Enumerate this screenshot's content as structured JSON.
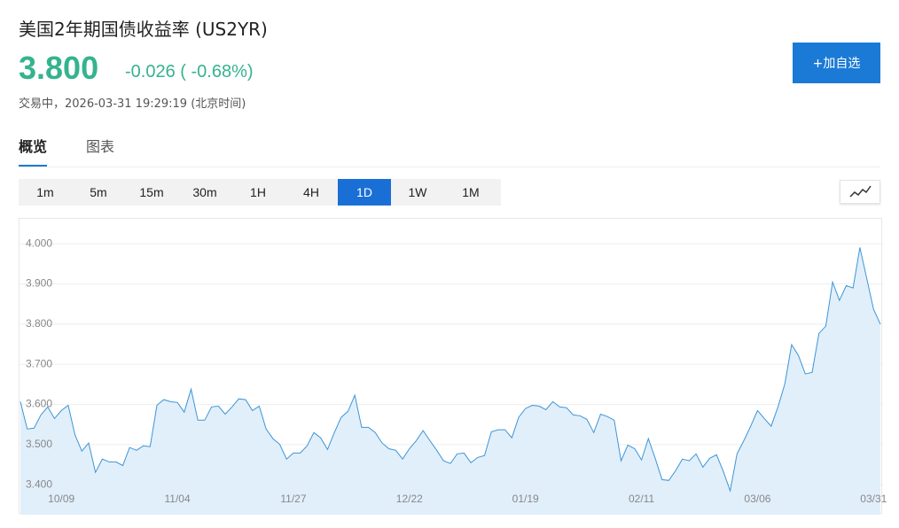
{
  "header": {
    "title": "美国2年期国债收益率 (US2YR)",
    "price": "3.800",
    "change": "-0.026",
    "change_percent": "( -0.68%)",
    "status": "交易中，2026-03-31 19:29:19 (北京时间)",
    "button": "+加自选"
  },
  "tabs": {
    "items": [
      "概览",
      "图表"
    ],
    "selected": "概览"
  },
  "periods": {
    "items": [
      "1m",
      "5m",
      "15m",
      "30m",
      "1H",
      "4H",
      "1D",
      "1W",
      "1M"
    ],
    "selected": "1D"
  },
  "chart_data": {
    "type": "area",
    "color": "#3d95d5",
    "fill": "#e1effb",
    "grid": true,
    "values": [
      3.607,
      3.539,
      3.541,
      3.574,
      3.594,
      3.565,
      3.585,
      3.598,
      3.524,
      3.484,
      3.504,
      3.431,
      3.464,
      3.457,
      3.457,
      3.448,
      3.493,
      3.486,
      3.497,
      3.495,
      3.598,
      3.612,
      3.607,
      3.605,
      3.581,
      3.638,
      3.561,
      3.561,
      3.594,
      3.596,
      3.576,
      3.594,
      3.614,
      3.612,
      3.585,
      3.596,
      3.539,
      3.515,
      3.501,
      3.464,
      3.479,
      3.479,
      3.497,
      3.53,
      3.517,
      3.488,
      3.53,
      3.568,
      3.583,
      3.623,
      3.543,
      3.543,
      3.53,
      3.504,
      3.49,
      3.486,
      3.464,
      3.49,
      3.51,
      3.535,
      3.51,
      3.486,
      3.46,
      3.453,
      3.477,
      3.479,
      3.455,
      3.468,
      3.473,
      3.532,
      3.537,
      3.537,
      3.517,
      3.568,
      3.59,
      3.598,
      3.596,
      3.587,
      3.607,
      3.594,
      3.592,
      3.574,
      3.572,
      3.563,
      3.53,
      3.576,
      3.57,
      3.561,
      3.46,
      3.499,
      3.49,
      3.462,
      3.515,
      3.466,
      3.413,
      3.411,
      3.435,
      3.464,
      3.46,
      3.477,
      3.444,
      3.466,
      3.475,
      3.433,
      3.385,
      3.477,
      3.51,
      3.546,
      3.585,
      3.565,
      3.546,
      3.594,
      3.651,
      3.749,
      3.722,
      3.676,
      3.68,
      3.777,
      3.795,
      3.905,
      3.859,
      3.896,
      3.89,
      3.991,
      3.914,
      3.837,
      3.8
    ],
    "xlim": [
      0,
      126
    ],
    "xticks": [
      {
        "value": 6,
        "label": "10/09"
      },
      {
        "value": 23,
        "label": "11/04"
      },
      {
        "value": 40,
        "label": "11/27"
      },
      {
        "value": 57,
        "label": "12/22"
      },
      {
        "value": 74,
        "label": "01/19"
      },
      {
        "value": 91,
        "label": "02/11"
      },
      {
        "value": 108,
        "label": "03/06"
      },
      {
        "value": 125,
        "label": "03/31"
      }
    ],
    "ylim": [
      3.33,
      4.06
    ],
    "yticks": [
      {
        "value": 3.4,
        "label": "3.400"
      },
      {
        "value": 3.5,
        "label": "3.500"
      },
      {
        "value": 3.6,
        "label": "3.600"
      },
      {
        "value": 3.7,
        "label": "3.700"
      },
      {
        "value": 3.8,
        "label": "3.800"
      },
      {
        "value": 3.9,
        "label": "3.900"
      },
      {
        "value": 4.0,
        "label": "4.000"
      }
    ]
  }
}
